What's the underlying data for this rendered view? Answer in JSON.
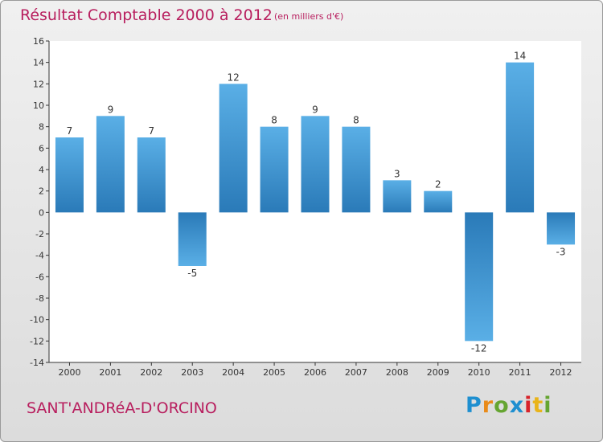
{
  "header": {
    "title": "Résultat Comptable 2000 à 2012",
    "subtitle": "(en milliers d'€)"
  },
  "footer": {
    "commune": "SANT'ANDRéA-D'ORCINO",
    "logo_letters": [
      "P",
      "r",
      "o",
      "x",
      "i",
      "t",
      "i"
    ]
  },
  "colors": {
    "title": "#b81e5e",
    "bar_dark": "#2a7ab8",
    "bar_light": "#5aafe6"
  },
  "chart_data": {
    "type": "bar",
    "title": "Résultat Comptable 2000 à 2012",
    "subtitle": "(en milliers d'€)",
    "categories": [
      "2000",
      "2001",
      "2002",
      "2003",
      "2004",
      "2005",
      "2006",
      "2007",
      "2008",
      "2009",
      "2010",
      "2011",
      "2012"
    ],
    "values": [
      7,
      9,
      7,
      -5,
      12,
      8,
      9,
      8,
      3,
      2,
      -12,
      14,
      -3
    ],
    "value_labels": [
      "7",
      "9",
      "7",
      "-5",
      "12",
      "8",
      "9",
      "8",
      "3",
      "2",
      "-12",
      "14",
      "-3"
    ],
    "ylim": [
      -14,
      16
    ],
    "yticks": [
      16,
      14,
      12,
      10,
      8,
      6,
      4,
      2,
      0,
      -2,
      -4,
      -6,
      -8,
      -10,
      -12,
      -14
    ],
    "grid": false,
    "legend": "none"
  }
}
